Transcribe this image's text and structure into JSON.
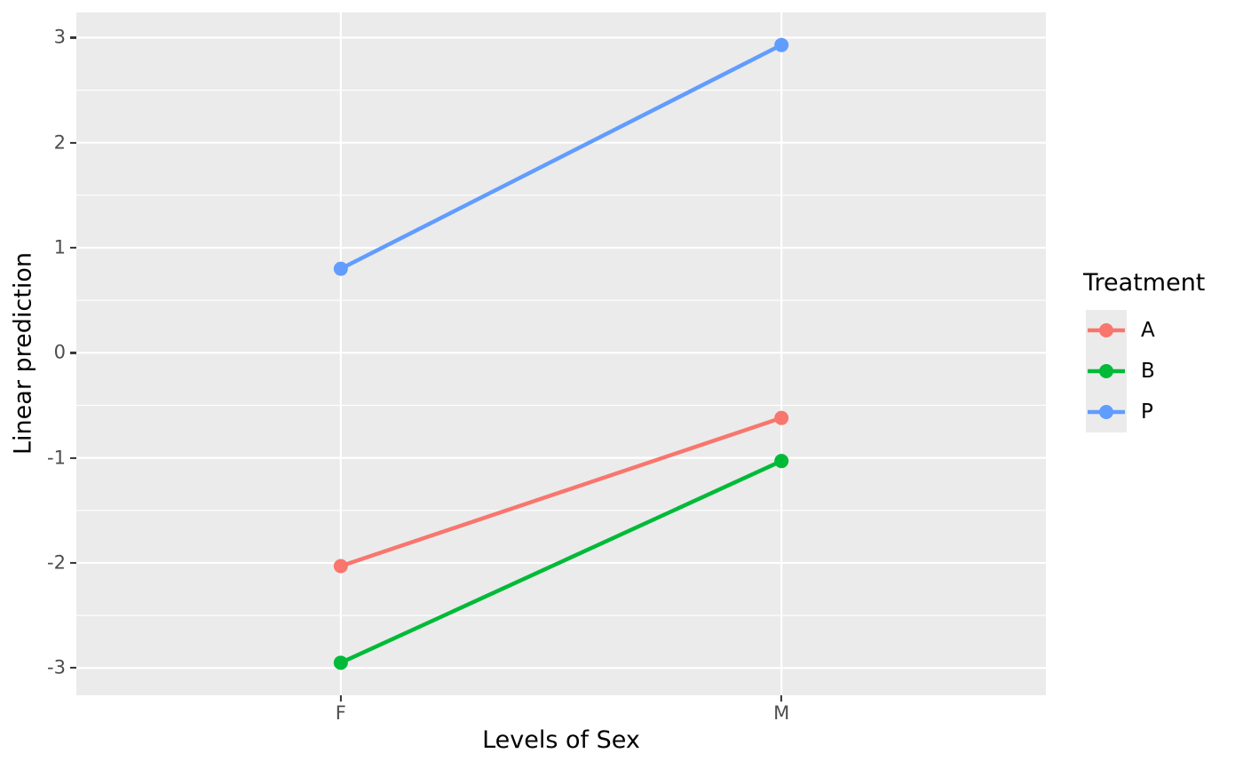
{
  "chart_data": {
    "type": "line",
    "title": "",
    "xlabel": "Levels of Sex",
    "ylabel": "Linear prediction",
    "x_categories": [
      "F",
      "M"
    ],
    "series": [
      {
        "name": "A",
        "color": "#F8766D",
        "values": [
          -2.03,
          -0.62
        ]
      },
      {
        "name": "B",
        "color": "#00BA38",
        "values": [
          -2.95,
          -1.03
        ]
      },
      {
        "name": "P",
        "color": "#619CFF",
        "values": [
          0.8,
          2.93
        ]
      }
    ],
    "ylim": [
      -3.26,
      3.24
    ],
    "yticks": [
      3,
      2,
      1,
      0,
      -1,
      -2,
      -3
    ],
    "yticks_minor": [
      2.5,
      1.5,
      0.5,
      -0.5,
      -1.5,
      -2.5
    ],
    "legend": {
      "title": "Treatment",
      "position": "right"
    },
    "grid": "major-and-minor",
    "style": {
      "panel_bg": "#EBEBEB",
      "grid_color": "#FFFFFF",
      "tick_mark_color": "#333333",
      "tick_label_color": "#4D4D4D",
      "axis_title_color": "#000000",
      "marker": "point-on-line"
    }
  }
}
